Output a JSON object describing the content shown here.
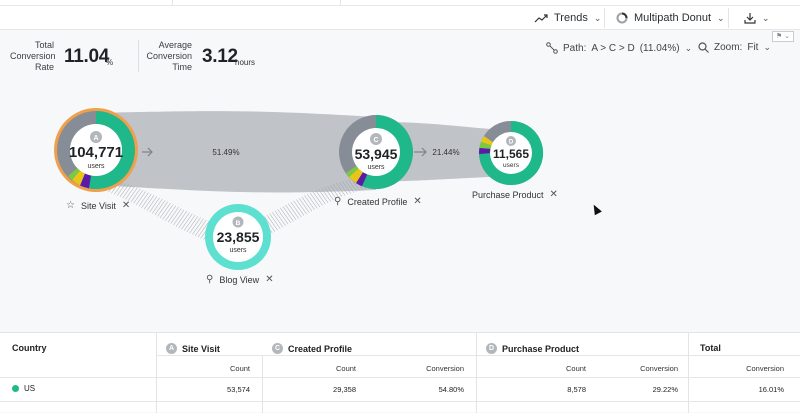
{
  "toolbar": {
    "trends_label": "Trends",
    "viz_label": "Multipath Donut"
  },
  "metrics": {
    "total_conversion": {
      "label_line1": "Total",
      "label_line2": "Conversion",
      "label_line3": "Rate",
      "value": "11.04",
      "unit": "%"
    },
    "avg_conversion": {
      "label_line1": "Average",
      "label_line2": "Conversion",
      "label_line3": "Time",
      "value": "3.12",
      "unit": "hours"
    }
  },
  "controls": {
    "path_label": "Path:",
    "path_value": "A > C > D",
    "path_pct": "(11.04%)",
    "zoom_label": "Zoom:",
    "zoom_value": "Fit"
  },
  "nodes": {
    "a": {
      "letter": "A",
      "count": "104,771",
      "unit": "users",
      "label": "Site Visit"
    },
    "b": {
      "letter": "B",
      "count": "23,855",
      "unit": "users",
      "label": "Blog View"
    },
    "c": {
      "letter": "C",
      "count": "53,945",
      "unit": "users",
      "label": "Created Profile"
    },
    "d": {
      "letter": "D",
      "count": "11,565",
      "unit": "users",
      "label": "Purchase Product"
    }
  },
  "flows": {
    "a_to_c_pct": "51.49%",
    "c_to_d_pct": "21.44%"
  },
  "colors": {
    "teal": "#1fb88a",
    "gray": "#868d96",
    "orange_ring": "#f0a04b",
    "cyan": "#5de0d0",
    "yellow": "#e7c619",
    "purple": "#5b1aa8",
    "green": "#7ac943"
  },
  "table": {
    "col_country": "Country",
    "col_a": {
      "badge": "A",
      "label": "Site Visit"
    },
    "col_c": {
      "badge": "C",
      "label": "Created Profile"
    },
    "col_d": {
      "badge": "D",
      "label": "Purchase Product"
    },
    "col_total": "Total",
    "sub_count": "Count",
    "sub_conversion": "Conversion",
    "rows": [
      {
        "country": "US",
        "a_count": "53,574",
        "c_count": "29,358",
        "c_conv": "54.80%",
        "d_count": "8,578",
        "d_conv": "29.22%",
        "total_conv": "16.01%"
      }
    ]
  }
}
